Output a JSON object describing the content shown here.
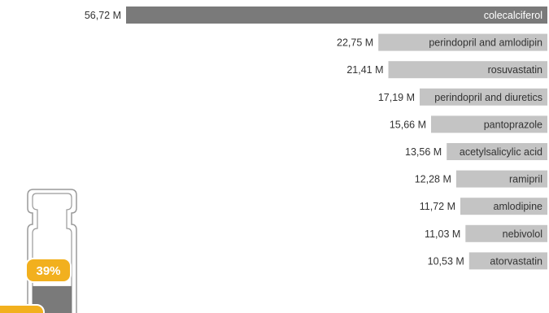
{
  "chart_data": {
    "type": "bar",
    "orientation": "horizontal",
    "title": "",
    "xlabel": "",
    "ylabel": "",
    "categories": [
      "colecalciferol",
      "perindopril and amlodipin",
      "rosuvastatin",
      "perindopril and diuretics",
      "pantoprazole",
      "acetylsalicylic acid",
      "ramipril",
      "amlodipine",
      "nebivolol",
      "atorvastatin"
    ],
    "values": [
      56.72,
      22.75,
      21.41,
      17.19,
      15.66,
      13.56,
      12.28,
      11.72,
      11.03,
      10.53
    ],
    "value_labels": [
      "56,72 M",
      "22,75 M",
      "21,41 M",
      "17,19 M",
      "15,66 M",
      "13,56 M",
      "12,28 M",
      "11,72 M",
      "11,03 M",
      "10,53 M"
    ],
    "bar_alignment": "right",
    "grid": false,
    "legend": "none",
    "colors": {
      "top_bar": "#7a7a7a",
      "other_bars": "#c4c4c4",
      "badge": "#f2b01e"
    }
  },
  "graphic": {
    "percent_label": "39%",
    "fill_fraction": 0.39,
    "icon": "medicine-bottle-icon"
  }
}
